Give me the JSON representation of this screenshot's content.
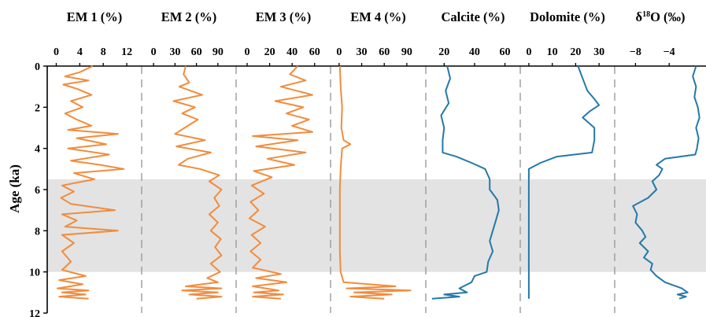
{
  "chart_data": {
    "type": "line",
    "layout": "stratigraphic panels sharing a vertical age axis",
    "ylabel": "Age (ka)",
    "y_ticks": [
      "0",
      "2",
      "4",
      "6",
      "8",
      "10",
      "12"
    ],
    "ylim": [
      0,
      12
    ],
    "y_inverted": true,
    "grid": false,
    "highlight_band": {
      "from": 5.5,
      "to": 10.0,
      "color": "#e3e3e3"
    },
    "panels": [
      {
        "title": "EM 1 (%)",
        "xlim": [
          -1,
          14
        ],
        "x_ticks": [
          0,
          4,
          8,
          12
        ],
        "x_tick_labels": [
          "0",
          "4",
          "8",
          "12"
        ],
        "color": "#f28c3c",
        "series": [
          {
            "age": 0.0,
            "value": 6.2
          },
          {
            "age": 0.3,
            "value": 4.0
          },
          {
            "age": 0.5,
            "value": 1.5
          },
          {
            "age": 0.7,
            "value": 5.5
          },
          {
            "age": 0.9,
            "value": 1.2
          },
          {
            "age": 1.1,
            "value": 3.5
          },
          {
            "age": 1.4,
            "value": 6.0
          },
          {
            "age": 1.7,
            "value": 2.5
          },
          {
            "age": 2.0,
            "value": 4.5
          },
          {
            "age": 2.3,
            "value": 1.5
          },
          {
            "age": 2.6,
            "value": 3.5
          },
          {
            "age": 2.9,
            "value": 6.0
          },
          {
            "age": 3.1,
            "value": 2.0
          },
          {
            "age": 3.3,
            "value": 10.5
          },
          {
            "age": 3.5,
            "value": 3.5
          },
          {
            "age": 3.8,
            "value": 8.5
          },
          {
            "age": 4.0,
            "value": 2.0
          },
          {
            "age": 4.3,
            "value": 9.0
          },
          {
            "age": 4.6,
            "value": 2.5
          },
          {
            "age": 4.8,
            "value": 7.5
          },
          {
            "age": 5.0,
            "value": 11.5
          },
          {
            "age": 5.2,
            "value": 3.0
          },
          {
            "age": 5.5,
            "value": 6.5
          },
          {
            "age": 5.8,
            "value": 1.0
          },
          {
            "age": 6.1,
            "value": 3.0
          },
          {
            "age": 6.4,
            "value": 0.8
          },
          {
            "age": 6.7,
            "value": 2.5
          },
          {
            "age": 7.0,
            "value": 10.0
          },
          {
            "age": 7.2,
            "value": 1.0
          },
          {
            "age": 7.5,
            "value": 3.5
          },
          {
            "age": 7.8,
            "value": 1.5
          },
          {
            "age": 8.0,
            "value": 10.5
          },
          {
            "age": 8.2,
            "value": 1.0
          },
          {
            "age": 8.6,
            "value": 3.0
          },
          {
            "age": 9.0,
            "value": 1.0
          },
          {
            "age": 9.5,
            "value": 2.5
          },
          {
            "age": 9.9,
            "value": 1.0
          },
          {
            "age": 10.2,
            "value": 5.0
          },
          {
            "age": 10.4,
            "value": 0.5
          },
          {
            "age": 10.6,
            "value": 4.5
          },
          {
            "age": 10.8,
            "value": 0.2
          },
          {
            "age": 10.9,
            "value": 5.5
          },
          {
            "age": 11.0,
            "value": 1.0
          },
          {
            "age": 11.1,
            "value": 5.0
          },
          {
            "age": 11.2,
            "value": 0.5
          },
          {
            "age": 11.3,
            "value": 5.5
          }
        ]
      },
      {
        "title": "EM 2 (%)",
        "xlim": [
          -10,
          110
        ],
        "x_ticks": [
          0,
          30,
          60,
          90
        ],
        "x_tick_labels": [
          "0",
          "30",
          "60",
          "90"
        ],
        "color": "#f28c3c",
        "series": [
          {
            "age": 0.0,
            "value": 45
          },
          {
            "age": 0.4,
            "value": 42
          },
          {
            "age": 0.8,
            "value": 50
          },
          {
            "age": 1.0,
            "value": 36
          },
          {
            "age": 1.4,
            "value": 68
          },
          {
            "age": 1.7,
            "value": 28
          },
          {
            "age": 2.0,
            "value": 58
          },
          {
            "age": 2.3,
            "value": 40
          },
          {
            "age": 2.6,
            "value": 62
          },
          {
            "age": 2.9,
            "value": 48
          },
          {
            "age": 3.3,
            "value": 30
          },
          {
            "age": 3.6,
            "value": 72
          },
          {
            "age": 3.9,
            "value": 32
          },
          {
            "age": 4.2,
            "value": 80
          },
          {
            "age": 4.5,
            "value": 48
          },
          {
            "age": 4.8,
            "value": 35
          },
          {
            "age": 5.0,
            "value": 65
          },
          {
            "age": 5.3,
            "value": 92
          },
          {
            "age": 5.6,
            "value": 78
          },
          {
            "age": 6.0,
            "value": 95
          },
          {
            "age": 6.4,
            "value": 85
          },
          {
            "age": 6.8,
            "value": 92
          },
          {
            "age": 7.2,
            "value": 78
          },
          {
            "age": 7.6,
            "value": 90
          },
          {
            "age": 8.0,
            "value": 80
          },
          {
            "age": 8.4,
            "value": 94
          },
          {
            "age": 8.8,
            "value": 86
          },
          {
            "age": 9.2,
            "value": 95
          },
          {
            "age": 9.6,
            "value": 80
          },
          {
            "age": 10.0,
            "value": 93
          },
          {
            "age": 10.3,
            "value": 75
          },
          {
            "age": 10.5,
            "value": 90
          },
          {
            "age": 10.7,
            "value": 45
          },
          {
            "age": 10.8,
            "value": 95
          },
          {
            "age": 10.9,
            "value": 40
          },
          {
            "age": 11.0,
            "value": 90
          },
          {
            "age": 11.1,
            "value": 50
          },
          {
            "age": 11.2,
            "value": 95
          },
          {
            "age": 11.3,
            "value": 60
          }
        ]
      },
      {
        "title": "EM 3 (%)",
        "xlim": [
          -7,
          70
        ],
        "x_ticks": [
          0,
          20,
          40,
          60
        ],
        "x_tick_labels": [
          "0",
          "20",
          "40",
          "60"
        ],
        "color": "#f28c3c",
        "series": [
          {
            "age": 0.0,
            "value": 45
          },
          {
            "age": 0.4,
            "value": 38
          },
          {
            "age": 0.7,
            "value": 52
          },
          {
            "age": 1.0,
            "value": 30
          },
          {
            "age": 1.4,
            "value": 58
          },
          {
            "age": 1.7,
            "value": 25
          },
          {
            "age": 2.0,
            "value": 50
          },
          {
            "age": 2.3,
            "value": 35
          },
          {
            "age": 2.6,
            "value": 55
          },
          {
            "age": 2.9,
            "value": 40
          },
          {
            "age": 3.2,
            "value": 58
          },
          {
            "age": 3.4,
            "value": 5
          },
          {
            "age": 3.6,
            "value": 45
          },
          {
            "age": 3.9,
            "value": 8
          },
          {
            "age": 4.2,
            "value": 52
          },
          {
            "age": 4.5,
            "value": 18
          },
          {
            "age": 4.8,
            "value": 42
          },
          {
            "age": 5.1,
            "value": 6
          },
          {
            "age": 5.4,
            "value": 22
          },
          {
            "age": 5.8,
            "value": 4
          },
          {
            "age": 6.2,
            "value": 15
          },
          {
            "age": 6.6,
            "value": 3
          },
          {
            "age": 7.0,
            "value": 10
          },
          {
            "age": 7.4,
            "value": 2
          },
          {
            "age": 7.8,
            "value": 16
          },
          {
            "age": 8.2,
            "value": 4
          },
          {
            "age": 8.6,
            "value": 12
          },
          {
            "age": 9.0,
            "value": 3
          },
          {
            "age": 9.4,
            "value": 12
          },
          {
            "age": 9.8,
            "value": 5
          },
          {
            "age": 10.1,
            "value": 30
          },
          {
            "age": 10.3,
            "value": 8
          },
          {
            "age": 10.5,
            "value": 35
          },
          {
            "age": 10.7,
            "value": 5
          },
          {
            "age": 10.9,
            "value": 28
          },
          {
            "age": 11.0,
            "value": 6
          },
          {
            "age": 11.1,
            "value": 32
          },
          {
            "age": 11.2,
            "value": 5
          },
          {
            "age": 11.3,
            "value": 30
          }
        ]
      },
      {
        "title": "EM 4 (%)",
        "xlim": [
          -3,
          110
        ],
        "x_ticks": [
          0,
          30,
          60,
          90
        ],
        "x_tick_labels": [
          "0",
          "30",
          "60",
          "90"
        ],
        "color": "#f28c3c",
        "series": [
          {
            "age": 0.0,
            "value": 1
          },
          {
            "age": 1.0,
            "value": 2
          },
          {
            "age": 2.0,
            "value": 4
          },
          {
            "age": 3.0,
            "value": 3
          },
          {
            "age": 3.6,
            "value": 6
          },
          {
            "age": 3.8,
            "value": 15
          },
          {
            "age": 4.0,
            "value": 4
          },
          {
            "age": 4.5,
            "value": 3
          },
          {
            "age": 5.0,
            "value": 2
          },
          {
            "age": 6.0,
            "value": 1
          },
          {
            "age": 7.0,
            "value": 1
          },
          {
            "age": 8.0,
            "value": 1
          },
          {
            "age": 9.0,
            "value": 1
          },
          {
            "age": 10.0,
            "value": 2
          },
          {
            "age": 10.5,
            "value": 6
          },
          {
            "age": 10.7,
            "value": 75
          },
          {
            "age": 10.8,
            "value": 10
          },
          {
            "age": 10.9,
            "value": 95
          },
          {
            "age": 11.0,
            "value": 20
          },
          {
            "age": 11.1,
            "value": 70
          },
          {
            "age": 11.2,
            "value": 15
          },
          {
            "age": 11.3,
            "value": 60
          }
        ]
      },
      {
        "title": "Calcite (%)",
        "xlim": [
          10,
          68
        ],
        "x_ticks": [
          20,
          40,
          60
        ],
        "x_tick_labels": [
          "20",
          "40",
          "60"
        ],
        "color": "#2479a8",
        "series": [
          {
            "age": 0.0,
            "value": 22
          },
          {
            "age": 0.6,
            "value": 24
          },
          {
            "age": 1.2,
            "value": 21
          },
          {
            "age": 1.8,
            "value": 23
          },
          {
            "age": 2.4,
            "value": 18
          },
          {
            "age": 3.0,
            "value": 20
          },
          {
            "age": 3.6,
            "value": 19
          },
          {
            "age": 4.2,
            "value": 19
          },
          {
            "age": 4.4,
            "value": 28
          },
          {
            "age": 4.7,
            "value": 38
          },
          {
            "age": 5.0,
            "value": 47
          },
          {
            "age": 5.5,
            "value": 50
          },
          {
            "age": 6.0,
            "value": 50
          },
          {
            "age": 6.5,
            "value": 55
          },
          {
            "age": 7.0,
            "value": 56
          },
          {
            "age": 7.5,
            "value": 54
          },
          {
            "age": 8.0,
            "value": 52
          },
          {
            "age": 8.5,
            "value": 50
          },
          {
            "age": 9.0,
            "value": 52
          },
          {
            "age": 9.5,
            "value": 49
          },
          {
            "age": 10.0,
            "value": 48
          },
          {
            "age": 10.2,
            "value": 40
          },
          {
            "age": 10.5,
            "value": 38
          },
          {
            "age": 10.8,
            "value": 30
          },
          {
            "age": 11.0,
            "value": 35
          },
          {
            "age": 11.1,
            "value": 20
          },
          {
            "age": 11.2,
            "value": 30
          },
          {
            "age": 11.3,
            "value": 12
          }
        ]
      },
      {
        "title": "Dolomite (%)",
        "xlim": [
          -2,
          35
        ],
        "x_ticks": [
          0,
          10,
          20,
          30
        ],
        "x_tick_labels": [
          "0",
          "10",
          "20",
          "30"
        ],
        "color": "#2479a8",
        "series": [
          {
            "age": 0.0,
            "value": 21
          },
          {
            "age": 0.6,
            "value": 23
          },
          {
            "age": 1.2,
            "value": 25
          },
          {
            "age": 1.6,
            "value": 28
          },
          {
            "age": 1.9,
            "value": 30
          },
          {
            "age": 2.2,
            "value": 26
          },
          {
            "age": 2.5,
            "value": 23
          },
          {
            "age": 3.0,
            "value": 28
          },
          {
            "age": 3.6,
            "value": 28
          },
          {
            "age": 4.2,
            "value": 27
          },
          {
            "age": 4.4,
            "value": 12
          },
          {
            "age": 4.7,
            "value": 5
          },
          {
            "age": 5.0,
            "value": 0
          },
          {
            "age": 6.0,
            "value": 0
          },
          {
            "age": 8.0,
            "value": 0
          },
          {
            "age": 10.0,
            "value": 0
          },
          {
            "age": 11.3,
            "value": 0
          }
        ]
      },
      {
        "title": "δ18O (‰)",
        "title_parts": [
          "δ",
          "18",
          "O (‰)"
        ],
        "xlim": [
          -10,
          0
        ],
        "x_ticks": [
          -8,
          -4
        ],
        "x_tick_labels": [
          "−8",
          "−4"
        ],
        "color": "#2479a8",
        "series": [
          {
            "age": 0.0,
            "value": -0.8
          },
          {
            "age": 0.5,
            "value": -1.2
          },
          {
            "age": 1.0,
            "value": -0.8
          },
          {
            "age": 1.5,
            "value": -1.0
          },
          {
            "age": 2.0,
            "value": -0.6
          },
          {
            "age": 2.5,
            "value": -0.4
          },
          {
            "age": 3.0,
            "value": -0.8
          },
          {
            "age": 3.5,
            "value": -0.5
          },
          {
            "age": 4.0,
            "value": -0.7
          },
          {
            "age": 4.3,
            "value": -0.9
          },
          {
            "age": 4.5,
            "value": -4.5
          },
          {
            "age": 4.8,
            "value": -5.5
          },
          {
            "age": 5.0,
            "value": -4.8
          },
          {
            "age": 5.3,
            "value": -5.2
          },
          {
            "age": 5.6,
            "value": -6.0
          },
          {
            "age": 6.0,
            "value": -5.5
          },
          {
            "age": 6.4,
            "value": -6.5
          },
          {
            "age": 6.8,
            "value": -8.3
          },
          {
            "age": 7.2,
            "value": -7.8
          },
          {
            "age": 7.6,
            "value": -8.0
          },
          {
            "age": 8.0,
            "value": -7.2
          },
          {
            "age": 8.3,
            "value": -6.8
          },
          {
            "age": 8.6,
            "value": -7.5
          },
          {
            "age": 9.0,
            "value": -6.5
          },
          {
            "age": 9.3,
            "value": -7.0
          },
          {
            "age": 9.6,
            "value": -6.0
          },
          {
            "age": 9.9,
            "value": -6.2
          },
          {
            "age": 10.2,
            "value": -5.5
          },
          {
            "age": 10.5,
            "value": -4.5
          },
          {
            "age": 10.8,
            "value": -2.5
          },
          {
            "age": 11.0,
            "value": -1.8
          },
          {
            "age": 11.1,
            "value": -3.0
          },
          {
            "age": 11.2,
            "value": -2.0
          },
          {
            "age": 11.3,
            "value": -2.8
          }
        ]
      }
    ]
  }
}
